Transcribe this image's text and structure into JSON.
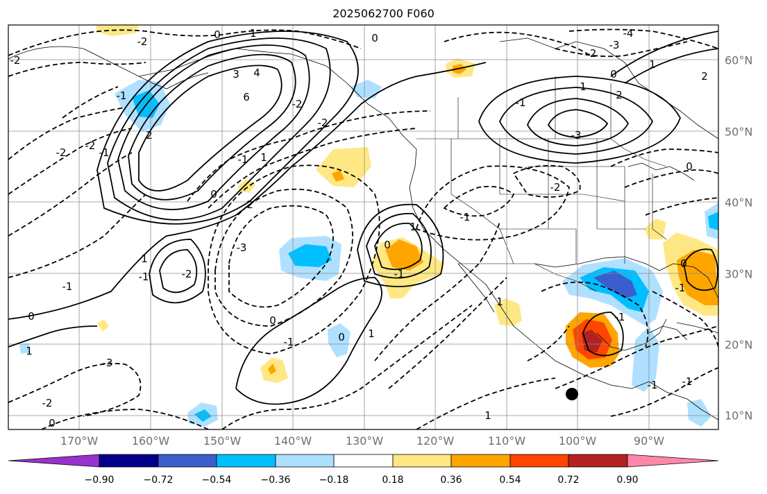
{
  "title": "2025062700 F060",
  "colors": {
    "ocean_bg": "#ffffff",
    "frame": "#000000",
    "grid": "#8c8c8c",
    "tick_label": "#6e6e6e",
    "contour": "#000000"
  },
  "longitude_labels": [
    "170°W",
    "160°W",
    "150°W",
    "140°W",
    "130°W",
    "120°W",
    "110°W",
    "100°W",
    "90°W"
  ],
  "latitude_labels": [
    "60°N",
    "50°N",
    "40°N",
    "30°N",
    "20°N",
    "10°N"
  ],
  "colorbar": {
    "colors": [
      "#9932cc",
      "#00008b",
      "#3a5fcd",
      "#00bfff",
      "#afe0ff",
      "#ffffff",
      "#ffe884",
      "#ffa500",
      "#ff4500",
      "#b22222",
      "#ff88aa"
    ],
    "tick_labels": [
      "−0.90",
      "−0.72",
      "−0.54",
      "−0.36",
      "−0.18",
      "0.18",
      "0.36",
      "0.54",
      "0.72",
      "0.90"
    ]
  },
  "contour_labels": [
    "0",
    "-1",
    "-2",
    "-2",
    "-4",
    "-3",
    "0",
    "1",
    "2",
    "3",
    "4",
    "6",
    "-2",
    "-2",
    "-1",
    "2",
    "-2",
    "-1",
    "0",
    "-1",
    "-3",
    "2",
    "1",
    "-2",
    "-2",
    "-3",
    "-2",
    "-1",
    "1",
    "-1",
    "0",
    "2",
    "-1",
    "-1",
    "0",
    "1",
    "0",
    "-1",
    "0",
    "1",
    "-2",
    "-1",
    "0",
    "1",
    "-3",
    "-2",
    "0",
    "1",
    "-1",
    "0",
    "-1",
    "-1",
    "0",
    "-1",
    "1",
    "1"
  ],
  "marker": "black-dot"
}
